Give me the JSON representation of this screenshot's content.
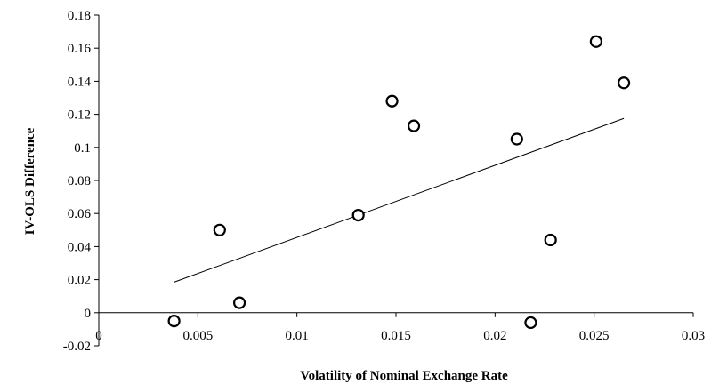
{
  "chart_data": {
    "type": "scatter",
    "title": "",
    "xlabel": "Volatility of Nominal Exchange Rate",
    "ylabel": "IV-OLS Difference",
    "xlim": [
      0,
      0.03
    ],
    "ylim": [
      -0.02,
      0.18
    ],
    "x_ticks": [
      0,
      0.005,
      0.01,
      0.015,
      0.02,
      0.025,
      0.03
    ],
    "x_tick_labels": [
      "0",
      "0.005",
      "0.01",
      "0.015",
      "0.02",
      "0.025",
      "0.03"
    ],
    "y_ticks": [
      -0.02,
      0,
      0.02,
      0.04,
      0.06,
      0.08,
      0.1,
      0.12,
      0.14,
      0.16,
      0.18
    ],
    "y_tick_labels": [
      "-0.02",
      "0",
      "0.02",
      "0.04",
      "0.06",
      "0.08",
      "0.1",
      "0.12",
      "0.14",
      "0.16",
      "0.18"
    ],
    "grid": false,
    "legend": "none",
    "marker": "open-circle",
    "points": [
      {
        "x": 0.0038,
        "y": -0.005
      },
      {
        "x": 0.0061,
        "y": 0.05
      },
      {
        "x": 0.0071,
        "y": 0.006
      },
      {
        "x": 0.0131,
        "y": 0.059
      },
      {
        "x": 0.0148,
        "y": 0.128
      },
      {
        "x": 0.0159,
        "y": 0.113
      },
      {
        "x": 0.0211,
        "y": 0.105
      },
      {
        "x": 0.0218,
        "y": -0.006
      },
      {
        "x": 0.0228,
        "y": 0.044
      },
      {
        "x": 0.0251,
        "y": 0.164
      },
      {
        "x": 0.0265,
        "y": 0.139
      }
    ],
    "trendline": {
      "x": [
        0.0038,
        0.0265
      ],
      "y": [
        0.0185,
        0.1175
      ]
    }
  }
}
